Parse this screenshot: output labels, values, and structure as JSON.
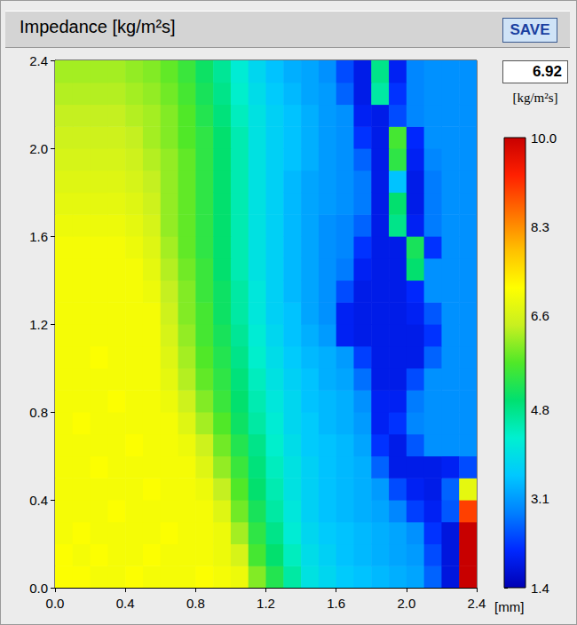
{
  "chart_data": {
    "type": "heatmap",
    "title": "Impedance [kg/m²s]",
    "button": "SAVE",
    "readout": {
      "value": 6.92,
      "unit": "[kg/m²s]"
    },
    "x_label": "[mm]",
    "x": [
      0.05,
      0.15,
      0.25,
      0.35,
      0.45,
      0.55,
      0.65,
      0.75,
      0.85,
      0.95,
      1.05,
      1.15,
      1.25,
      1.35,
      1.45,
      1.55,
      1.65,
      1.75,
      1.85,
      1.95,
      2.05,
      2.15,
      2.25,
      2.35
    ],
    "y": [
      0.05,
      0.15,
      0.25,
      0.35,
      0.45,
      0.55,
      0.65,
      0.75,
      0.85,
      0.95,
      1.05,
      1.15,
      1.25,
      1.35,
      1.45,
      1.55,
      1.65,
      1.75,
      1.85,
      1.95,
      2.05,
      2.15,
      2.25,
      2.35
    ],
    "values": [
      [
        7.1,
        7.1,
        7.0,
        7.0,
        7.1,
        7.0,
        7.0,
        7.0,
        7.1,
        7.0,
        6.9,
        6.0,
        5.3,
        4.6,
        4.0,
        3.8,
        3.6,
        3.5,
        3.4,
        3.3,
        3.2,
        2.6,
        1.8,
        10.0
      ],
      [
        7.1,
        7.0,
        7.1,
        7.0,
        7.0,
        7.1,
        7.0,
        7.0,
        7.0,
        6.9,
        6.6,
        5.6,
        5.0,
        4.4,
        3.9,
        3.7,
        3.5,
        3.4,
        3.3,
        3.2,
        3.1,
        2.4,
        1.8,
        10.0
      ],
      [
        7.0,
        7.1,
        7.0,
        7.0,
        7.0,
        7.0,
        7.1,
        7.0,
        7.0,
        6.9,
        6.2,
        5.4,
        4.8,
        4.2,
        3.8,
        3.6,
        3.5,
        3.4,
        3.3,
        3.2,
        3.0,
        2.2,
        1.8,
        10.0
      ],
      [
        7.0,
        7.0,
        7.0,
        7.1,
        7.0,
        7.0,
        7.0,
        7.0,
        7.0,
        6.7,
        5.9,
        5.2,
        4.6,
        4.1,
        3.7,
        3.5,
        3.4,
        3.3,
        3.2,
        2.9,
        2.3,
        2.0,
        2.5,
        9.0
      ],
      [
        7.0,
        7.0,
        7.0,
        7.0,
        7.0,
        7.1,
        7.0,
        7.0,
        6.9,
        6.4,
        5.7,
        5.0,
        4.5,
        4.0,
        3.7,
        3.5,
        3.4,
        3.3,
        3.1,
        2.4,
        2.0,
        1.9,
        2.6,
        6.8
      ],
      [
        7.0,
        7.0,
        7.1,
        7.0,
        7.0,
        7.0,
        7.0,
        7.0,
        6.7,
        6.1,
        5.5,
        4.9,
        4.4,
        4.0,
        3.7,
        3.5,
        3.4,
        3.3,
        2.6,
        1.9,
        1.9,
        1.9,
        2.0,
        2.4
      ],
      [
        7.0,
        7.0,
        7.0,
        7.0,
        7.1,
        7.0,
        7.0,
        6.9,
        6.5,
        5.9,
        5.3,
        4.8,
        4.3,
        3.9,
        3.6,
        3.5,
        3.4,
        3.2,
        2.2,
        1.9,
        2.5,
        3.0,
        3.0,
        3.0
      ],
      [
        7.0,
        7.1,
        7.0,
        7.0,
        7.0,
        7.0,
        7.0,
        6.7,
        6.2,
        5.7,
        5.1,
        4.6,
        4.2,
        3.8,
        3.6,
        3.4,
        3.3,
        3.1,
        2.0,
        2.2,
        2.9,
        3.0,
        3.0,
        3.0
      ],
      [
        7.0,
        7.0,
        7.0,
        7.1,
        7.0,
        7.0,
        6.9,
        6.5,
        6.0,
        5.5,
        5.0,
        4.5,
        4.1,
        3.8,
        3.5,
        3.4,
        3.3,
        3.0,
        2.0,
        2.0,
        2.8,
        3.0,
        3.0,
        3.0
      ],
      [
        7.0,
        7.0,
        7.0,
        7.0,
        7.0,
        7.0,
        6.8,
        6.3,
        5.8,
        5.4,
        4.9,
        4.4,
        4.0,
        3.7,
        3.5,
        3.3,
        3.2,
        2.7,
        1.9,
        1.9,
        2.4,
        3.0,
        3.0,
        3.0
      ],
      [
        7.0,
        7.0,
        7.1,
        7.0,
        7.0,
        7.0,
        6.7,
        6.2,
        5.7,
        5.3,
        4.8,
        4.3,
        3.9,
        3.6,
        3.4,
        3.3,
        3.1,
        2.3,
        1.9,
        1.9,
        1.9,
        2.6,
        3.0,
        3.0
      ],
      [
        7.0,
        7.0,
        7.0,
        7.0,
        7.0,
        7.0,
        6.6,
        6.1,
        5.6,
        5.2,
        4.7,
        4.2,
        3.8,
        3.5,
        3.3,
        3.1,
        2.0,
        1.9,
        1.9,
        1.9,
        1.9,
        2.2,
        3.0,
        3.0
      ],
      [
        7.0,
        7.0,
        7.0,
        7.0,
        7.0,
        7.0,
        6.5,
        6.0,
        5.6,
        5.1,
        4.6,
        4.1,
        3.7,
        3.5,
        3.2,
        3.0,
        2.0,
        1.9,
        1.9,
        1.9,
        2.0,
        2.5,
        3.0,
        3.0
      ],
      [
        7.0,
        7.0,
        7.0,
        7.0,
        7.0,
        6.9,
        6.4,
        6.0,
        5.5,
        5.1,
        4.6,
        4.1,
        3.7,
        3.4,
        3.2,
        3.0,
        2.4,
        1.9,
        1.9,
        1.9,
        2.1,
        3.0,
        3.0,
        3.0
      ],
      [
        7.0,
        7.0,
        7.0,
        7.0,
        7.0,
        6.8,
        6.3,
        5.9,
        5.5,
        5.0,
        4.5,
        4.0,
        3.7,
        3.4,
        3.2,
        3.0,
        2.8,
        2.0,
        1.9,
        1.9,
        5.0,
        3.0,
        3.0,
        3.0
      ],
      [
        7.0,
        7.0,
        7.0,
        7.0,
        6.9,
        6.7,
        6.2,
        5.8,
        5.4,
        5.0,
        4.5,
        4.0,
        3.7,
        3.4,
        3.2,
        3.0,
        2.9,
        2.2,
        1.9,
        1.9,
        5.2,
        2.2,
        3.0,
        3.0
      ],
      [
        6.9,
        6.9,
        6.9,
        6.9,
        6.8,
        6.6,
        6.1,
        5.8,
        5.4,
        5.0,
        4.5,
        4.0,
        3.7,
        3.4,
        3.2,
        3.0,
        2.9,
        2.6,
        1.9,
        4.8,
        2.0,
        2.8,
        3.0,
        3.0
      ],
      [
        6.8,
        6.8,
        6.8,
        6.8,
        6.7,
        6.5,
        6.1,
        5.8,
        5.4,
        5.0,
        4.5,
        4.0,
        3.7,
        3.4,
        3.2,
        3.1,
        3.0,
        2.8,
        1.9,
        5.0,
        1.9,
        2.8,
        3.0,
        3.0
      ],
      [
        6.7,
        6.7,
        6.7,
        6.7,
        6.6,
        6.4,
        6.1,
        5.8,
        5.4,
        5.0,
        4.5,
        4.0,
        3.7,
        3.4,
        3.2,
        3.1,
        3.0,
        2.8,
        1.9,
        3.5,
        1.9,
        2.8,
        3.0,
        3.0
      ],
      [
        6.6,
        6.6,
        6.6,
        6.6,
        6.5,
        6.3,
        6.1,
        5.8,
        5.4,
        5.0,
        4.5,
        4.0,
        3.7,
        3.5,
        3.3,
        3.1,
        3.0,
        2.6,
        1.9,
        5.4,
        2.0,
        2.9,
        3.0,
        3.0
      ],
      [
        6.5,
        6.5,
        6.5,
        6.5,
        6.4,
        6.2,
        6.0,
        5.7,
        5.4,
        5.0,
        4.5,
        4.0,
        3.7,
        3.5,
        3.3,
        3.1,
        3.0,
        2.2,
        1.9,
        5.6,
        2.1,
        3.0,
        3.0,
        3.0
      ],
      [
        6.4,
        6.4,
        6.4,
        6.4,
        6.3,
        6.2,
        6.0,
        5.7,
        5.3,
        4.9,
        4.4,
        4.0,
        3.7,
        3.5,
        3.3,
        3.1,
        3.0,
        2.0,
        1.9,
        2.4,
        2.9,
        3.0,
        3.0,
        3.0
      ],
      [
        6.3,
        6.3,
        6.3,
        6.3,
        6.2,
        6.1,
        5.9,
        5.6,
        5.2,
        4.8,
        4.3,
        3.9,
        3.6,
        3.4,
        3.2,
        3.1,
        2.6,
        1.9,
        4.6,
        2.2,
        2.9,
        3.0,
        3.0,
        3.0
      ],
      [
        6.2,
        6.2,
        6.2,
        6.2,
        6.1,
        6.0,
        5.8,
        5.5,
        5.1,
        4.7,
        4.2,
        3.8,
        3.5,
        3.3,
        3.2,
        3.0,
        2.4,
        1.9,
        4.8,
        2.0,
        2.9,
        3.0,
        3.0,
        3.0
      ]
    ],
    "xlim": [
      0,
      2.4
    ],
    "ylim": [
      0,
      2.4
    ],
    "xticks": [
      {
        "value": 0,
        "label": "0.0"
      },
      0.4,
      0.8,
      1.2,
      1.6,
      {
        "value": 2,
        "label": "2.0"
      },
      2.4
    ],
    "yticks": [
      {
        "value": 0,
        "label": "0.0"
      },
      0.4,
      0.8,
      1.2,
      1.6,
      {
        "value": 2,
        "label": "2.0"
      },
      2.4
    ],
    "colorbar": {
      "range": [
        1.4,
        10
      ],
      "ticks": [
        1.4,
        3.1,
        4.8,
        6.6,
        8.3,
        {
          "value": 10,
          "label": "10.0"
        }
      ]
    },
    "grid": false
  }
}
